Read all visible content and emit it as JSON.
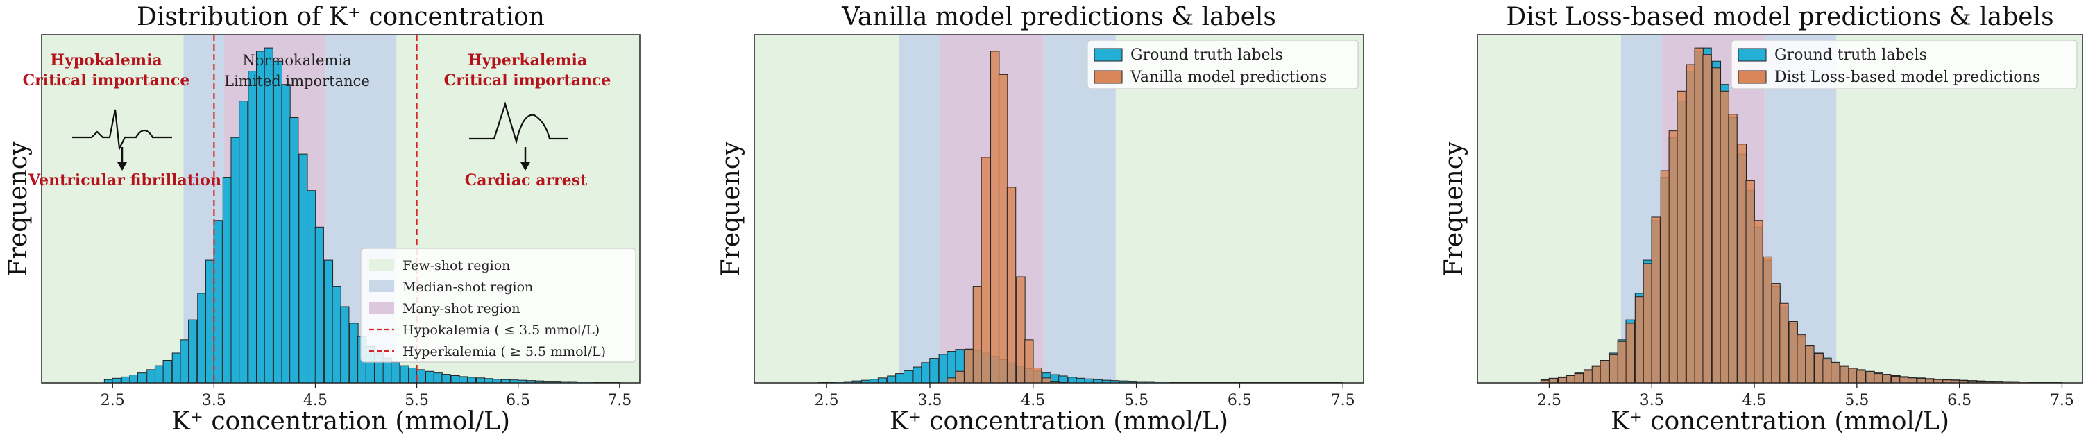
{
  "chart_data": [
    {
      "type": "bar",
      "title": "Distribution of K⁺ concentration",
      "xlabel": "K⁺ concentration (mmol/L)",
      "ylabel": "Frequency",
      "xlim": [
        1.8,
        7.7
      ],
      "ylim": [
        0,
        1050
      ],
      "xticks": [
        "2.5",
        "3.5",
        "4.5",
        "5.5",
        "6.5",
        "7.5"
      ],
      "bin_width": 0.0833,
      "grid": false,
      "legend_position": "lower-right",
      "regions": [
        {
          "name": "Few-shot region",
          "ranges": [
            [
              1.8,
              3.2
            ],
            [
              5.3,
              7.7
            ]
          ],
          "color": "#e4f2e1"
        },
        {
          "name": "Median-shot region",
          "ranges": [
            [
              3.2,
              3.6
            ],
            [
              4.6,
              5.3
            ]
          ],
          "color": "#c8d8e8"
        },
        {
          "name": "Many-shot region",
          "ranges": [
            [
              3.6,
              4.6
            ]
          ],
          "color": "#dcc8dc"
        }
      ],
      "thresholds": [
        {
          "label": "Hypokalemia ( ≤  3.5 mmol/L)",
          "x": 3.5,
          "color": "#d62728"
        },
        {
          "label": "Hyperkalemia ( ≥  5.5 mmol/L)",
          "x": 5.5,
          "color": "#d62728"
        }
      ],
      "series": [
        {
          "name": "",
          "color": "#24b0d6",
          "x": [
            2.46,
            2.54,
            2.63,
            2.71,
            2.79,
            2.88,
            2.96,
            3.04,
            3.13,
            3.21,
            3.29,
            3.38,
            3.46,
            3.54,
            3.63,
            3.71,
            3.79,
            3.88,
            3.96,
            4.04,
            4.13,
            4.21,
            4.29,
            4.38,
            4.46,
            4.54,
            4.63,
            4.71,
            4.79,
            4.88,
            4.96,
            5.04,
            5.13,
            5.21,
            5.29,
            5.38,
            5.46,
            5.54,
            5.63,
            5.71,
            5.79,
            5.88,
            5.96,
            6.04,
            6.13,
            6.21,
            6.29,
            6.38,
            6.46,
            6.54,
            6.63,
            6.71,
            6.79,
            6.88,
            6.96,
            7.04,
            7.13,
            7.21,
            7.29,
            7.38,
            7.46
          ],
          "values": [
            10,
            14,
            18,
            24,
            30,
            40,
            52,
            68,
            90,
            130,
            190,
            270,
            370,
            490,
            620,
            740,
            850,
            940,
            1000,
            1010,
            970,
            900,
            800,
            690,
            580,
            470,
            370,
            290,
            230,
            180,
            140,
            110,
            90,
            75,
            62,
            52,
            45,
            40,
            35,
            30,
            26,
            22,
            19,
            17,
            15,
            13,
            11,
            10,
            9,
            8,
            7,
            6,
            5,
            5,
            4,
            4,
            3,
            3,
            2,
            2,
            2
          ]
        }
      ],
      "annotations": {
        "hypo_title": "Hypokalemia",
        "hypo_importance": "Critical importance",
        "hypo_effect": "Ventricular fibrillation",
        "normo_title": "Normokalemia",
        "normo_importance": "Limited importance",
        "hyper_title": "Hyperkalemia",
        "hyper_importance": "Critical importance",
        "hyper_effect": "Cardiac arrest"
      }
    },
    {
      "type": "bar",
      "title": "Vanilla model predictions & labels",
      "xlabel": "K⁺ concentration (mmol/L)",
      "ylabel": "Frequency",
      "xlim": [
        1.8,
        7.7
      ],
      "ylim": [
        0,
        1050
      ],
      "xticks": [
        "2.5",
        "3.5",
        "4.5",
        "5.5",
        "6.5",
        "7.5"
      ],
      "bin_width": 0.0833,
      "grid": false,
      "legend_position": "top-right",
      "regions": [
        {
          "name": "Few-shot region",
          "ranges": [
            [
              1.8,
              3.2
            ],
            [
              5.3,
              7.7
            ]
          ],
          "color": "#e4f2e1"
        },
        {
          "name": "Median-shot region",
          "ranges": [
            [
              3.2,
              3.6
            ],
            [
              4.6,
              5.3
            ]
          ],
          "color": "#c8d8e8"
        },
        {
          "name": "Many-shot region",
          "ranges": [
            [
              3.6,
              4.6
            ]
          ],
          "color": "#dcc8dc"
        }
      ],
      "series": [
        {
          "name": "Ground truth labels",
          "color": "#24b0d6",
          "x": [
            2.46,
            2.54,
            2.63,
            2.71,
            2.79,
            2.88,
            2.96,
            3.04,
            3.13,
            3.21,
            3.29,
            3.38,
            3.46,
            3.54,
            3.63,
            3.71,
            3.79,
            3.88,
            3.96,
            4.04,
            4.13,
            4.21,
            4.29,
            4.38,
            4.46,
            4.54,
            4.63,
            4.71,
            4.79,
            4.88,
            4.96,
            5.04,
            5.13,
            5.21,
            5.29,
            5.38,
            5.46,
            5.54,
            5.63,
            5.71,
            5.79,
            5.88,
            5.96,
            6.04,
            6.13,
            6.21,
            6.29,
            6.38,
            6.46,
            6.54,
            6.63,
            6.71,
            6.79,
            6.88,
            6.96,
            7.04,
            7.13,
            7.21,
            7.29,
            7.38,
            7.46
          ],
          "values": [
            1,
            2,
            3,
            4,
            6,
            8,
            11,
            15,
            21,
            28,
            37,
            48,
            61,
            74,
            86,
            95,
            101,
            102,
            98,
            90,
            80,
            70,
            60,
            51,
            43,
            36,
            30,
            25,
            21,
            17,
            14,
            12,
            10,
            8,
            7,
            6,
            5,
            4,
            4,
            3,
            3,
            2,
            2,
            2,
            1,
            1,
            1,
            1,
            1,
            1,
            1,
            1,
            1,
            1,
            1,
            1,
            1,
            1,
            1,
            1,
            1
          ]
        },
        {
          "name": "Vanilla model predictions",
          "color": "#d9875a",
          "x": [
            3.63,
            3.71,
            3.79,
            3.88,
            3.96,
            4.04,
            4.13,
            4.21,
            4.29,
            4.38,
            4.46,
            4.54,
            4.63,
            4.71,
            4.79
          ],
          "values": [
            3,
            15,
            35,
            100,
            290,
            680,
            1000,
            930,
            590,
            320,
            130,
            45,
            15,
            5,
            2
          ]
        }
      ]
    },
    {
      "type": "bar",
      "title": "Dist Loss-based model predictions & labels",
      "xlabel": "K⁺ concentration (mmol/L)",
      "ylabel": "Frequency",
      "xlim": [
        1.8,
        7.7
      ],
      "ylim": [
        0,
        1050
      ],
      "xticks": [
        "2.5",
        "3.5",
        "4.5",
        "5.5",
        "6.5",
        "7.5"
      ],
      "bin_width": 0.0833,
      "grid": false,
      "legend_position": "top-right",
      "regions": [
        {
          "name": "Few-shot region",
          "ranges": [
            [
              1.8,
              3.2
            ],
            [
              5.3,
              7.7
            ]
          ],
          "color": "#e4f2e1"
        },
        {
          "name": "Median-shot region",
          "ranges": [
            [
              3.2,
              3.6
            ],
            [
              4.6,
              5.3
            ]
          ],
          "color": "#c8d8e8"
        },
        {
          "name": "Many-shot region",
          "ranges": [
            [
              3.6,
              4.6
            ]
          ],
          "color": "#dcc8dc"
        }
      ],
      "series": [
        {
          "name": "Ground truth labels",
          "color": "#24b0d6",
          "x": [
            2.46,
            2.54,
            2.63,
            2.71,
            2.79,
            2.88,
            2.96,
            3.04,
            3.13,
            3.21,
            3.29,
            3.38,
            3.46,
            3.54,
            3.63,
            3.71,
            3.79,
            3.88,
            3.96,
            4.04,
            4.13,
            4.21,
            4.29,
            4.38,
            4.46,
            4.54,
            4.63,
            4.71,
            4.79,
            4.88,
            4.96,
            5.04,
            5.13,
            5.21,
            5.29,
            5.38,
            5.46,
            5.54,
            5.63,
            5.71,
            5.79,
            5.88,
            5.96,
            6.04,
            6.13,
            6.21,
            6.29,
            6.38,
            6.46,
            6.54,
            6.63,
            6.71,
            6.79,
            6.88,
            6.96,
            7.04,
            7.13,
            7.21,
            7.29,
            7.38,
            7.46
          ],
          "values": [
            10,
            14,
            18,
            24,
            30,
            40,
            52,
            68,
            90,
            130,
            190,
            270,
            370,
            490,
            620,
            740,
            850,
            940,
            1000,
            1010,
            970,
            900,
            800,
            690,
            580,
            470,
            370,
            290,
            230,
            180,
            140,
            110,
            90,
            75,
            62,
            52,
            45,
            40,
            35,
            30,
            26,
            22,
            19,
            17,
            15,
            13,
            11,
            10,
            9,
            8,
            7,
            6,
            5,
            5,
            4,
            4,
            3,
            3,
            2,
            2,
            2
          ]
        },
        {
          "name": "Dist Loss-based model predictions",
          "color": "#d9875a",
          "x": [
            2.46,
            2.54,
            2.63,
            2.71,
            2.79,
            2.88,
            2.96,
            3.04,
            3.13,
            3.21,
            3.29,
            3.38,
            3.46,
            3.54,
            3.63,
            3.71,
            3.79,
            3.88,
            3.96,
            4.04,
            4.13,
            4.21,
            4.29,
            4.38,
            4.46,
            4.54,
            4.63,
            4.71,
            4.79,
            4.88,
            4.96,
            5.04,
            5.13,
            5.21,
            5.29,
            5.38,
            5.46,
            5.54,
            5.63,
            5.71,
            5.79,
            5.88,
            5.96,
            6.04,
            6.13,
            6.21,
            6.29,
            6.38,
            6.46,
            6.54,
            6.63,
            6.71,
            6.79,
            6.88,
            6.96,
            7.04,
            7.13,
            7.21,
            7.29,
            7.38,
            7.46
          ],
          "values": [
            8,
            12,
            16,
            22,
            28,
            38,
            50,
            66,
            85,
            125,
            180,
            260,
            360,
            500,
            640,
            760,
            880,
            960,
            1010,
            990,
            950,
            880,
            810,
            720,
            610,
            490,
            380,
            300,
            240,
            185,
            145,
            112,
            88,
            72,
            60,
            50,
            44,
            38,
            33,
            28,
            24,
            20,
            17,
            15,
            13,
            11,
            10,
            9,
            8,
            7,
            6,
            5,
            5,
            4,
            4,
            3,
            3,
            2,
            2,
            2,
            2
          ]
        }
      ]
    }
  ]
}
